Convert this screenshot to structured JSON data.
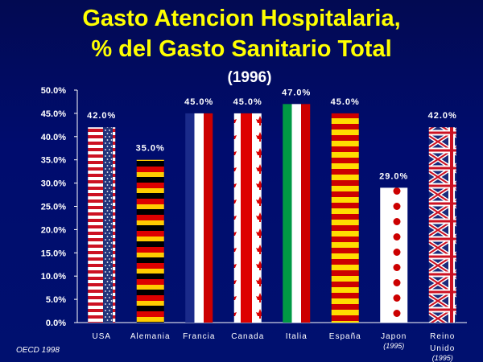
{
  "title_line1": "Gasto Atencion Hospitalaria,",
  "title_line2": "% del Gasto Sanitario Total",
  "subtitle": "(1996)",
  "source": "OECD 1998",
  "colors": {
    "background": "#000c6e",
    "title": "#ffff00",
    "text": "#ffffff"
  },
  "chart_data": {
    "type": "bar",
    "categories": [
      "USA",
      "Alemania",
      "Francia",
      "Canada",
      "Italia",
      "España",
      "Japon",
      "Reino Unido"
    ],
    "category_notes": [
      "",
      "",
      "",
      "",
      "",
      "",
      "(1995)",
      "(1995)"
    ],
    "values": [
      42.0,
      35.0,
      45.0,
      45.0,
      47.0,
      45.0,
      29.0,
      42.0
    ],
    "value_labels": [
      "42.0%",
      "35.0%",
      "45.0%",
      "45.0%",
      "47.0%",
      "45.0%",
      "29.0%",
      "42.0%"
    ],
    "bar_fills": [
      "flag-usa",
      "flag-germany",
      "flag-france",
      "flag-canada",
      "flag-italy",
      "flag-spain",
      "flag-japan",
      "flag-uk"
    ],
    "ylim": [
      0,
      50
    ],
    "yticks": [
      "0.0%",
      "5.0%",
      "10.0%",
      "15.0%",
      "20.0%",
      "25.0%",
      "30.0%",
      "35.0%",
      "40.0%",
      "45.0%",
      "50.0%"
    ],
    "title": "Gasto Atencion Hospitalaria, % del Gasto Sanitario Total",
    "grid": false
  }
}
